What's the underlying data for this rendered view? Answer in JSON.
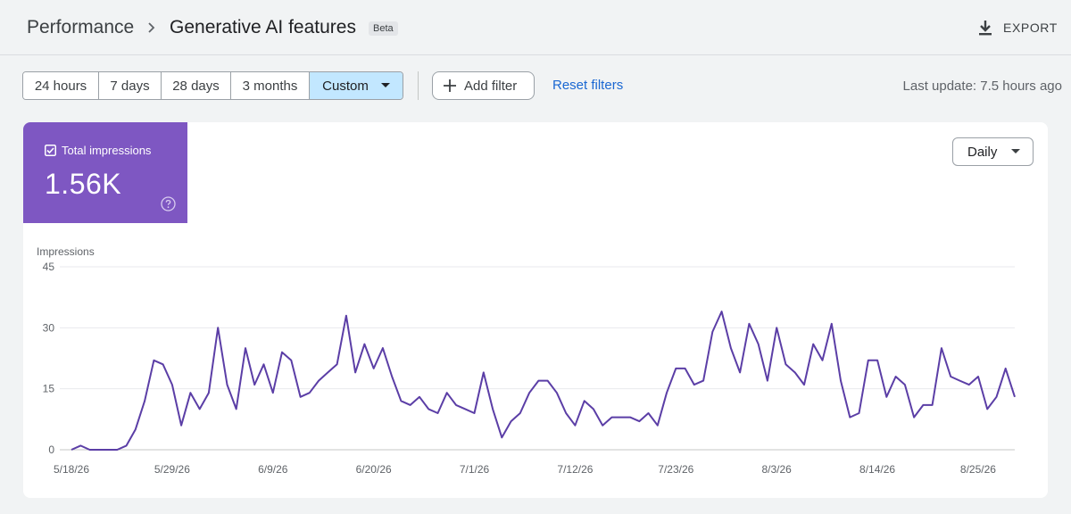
{
  "header": {
    "breadcrumb_root": "Performance",
    "breadcrumb_current": "Generative AI features",
    "badge": "Beta",
    "export_label": "EXPORT"
  },
  "filters": {
    "ranges": [
      {
        "label": "24 hours",
        "selected": false
      },
      {
        "label": "7 days",
        "selected": false
      },
      {
        "label": "28 days",
        "selected": false
      },
      {
        "label": "3 months",
        "selected": false
      },
      {
        "label": "Custom",
        "selected": true
      }
    ],
    "add_filter_label": "Add filter",
    "reset_label": "Reset filters",
    "last_update": "Last update: 7.5 hours ago"
  },
  "metric": {
    "label": "Total impressions",
    "value": "1.56K",
    "checked": true,
    "color": "#7e57c2"
  },
  "granularity": {
    "selected": "Daily"
  },
  "chart_data": {
    "type": "line",
    "ylabel": "Impressions",
    "yticks": [
      0,
      15,
      30,
      45
    ],
    "ylim": [
      0,
      45
    ],
    "xtick_labels": [
      "5/18/26",
      "5/29/26",
      "6/9/26",
      "6/20/26",
      "7/1/26",
      "7/12/26",
      "7/23/26",
      "8/3/26",
      "8/14/26",
      "8/25/26"
    ],
    "x_start": "5/18/26",
    "x_end": "8/29/26",
    "grid": true,
    "series": [
      {
        "color": "#5b3ea6",
        "values": [
          0,
          1,
          0,
          0,
          0,
          0,
          1,
          5,
          12,
          22,
          21,
          16,
          6,
          14,
          10,
          14,
          30,
          16,
          10,
          25,
          16,
          21,
          14,
          24,
          22,
          13,
          14,
          17,
          19,
          21,
          33,
          19,
          26,
          20,
          25,
          18,
          12,
          11,
          13,
          10,
          9,
          14,
          11,
          10,
          9,
          19,
          10,
          3,
          7,
          9,
          14,
          17,
          17,
          14,
          9,
          6,
          12,
          10,
          6,
          8,
          8,
          8,
          7,
          9,
          6,
          14,
          20,
          20,
          16,
          17,
          29,
          34,
          25,
          19,
          31,
          26,
          17,
          30,
          21,
          19,
          16,
          26,
          22,
          31,
          17,
          8,
          9,
          22,
          22,
          13,
          18,
          16,
          8,
          11,
          11,
          25,
          18,
          17,
          16,
          18,
          10,
          13,
          20,
          13
        ]
      }
    ]
  }
}
